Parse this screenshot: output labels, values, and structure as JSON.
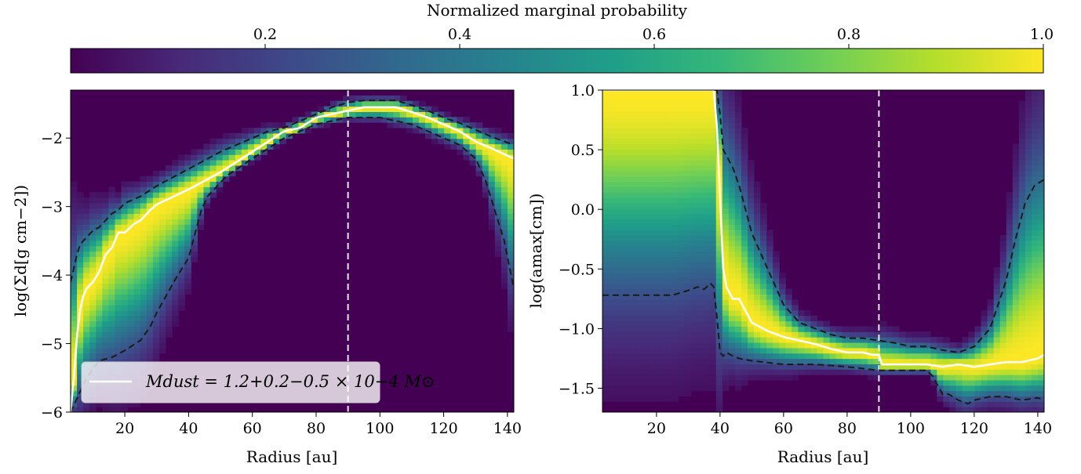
{
  "colorbar": {
    "title": "Normalized marginal probability",
    "ticks": [
      0.2,
      0.4,
      0.6,
      0.8,
      1.0
    ],
    "tick_labels": [
      "0.2",
      "0.4",
      "0.6",
      "0.8",
      "1.0"
    ],
    "range": [
      0.0,
      1.0
    ],
    "colormap": [
      "#440154",
      "#482878",
      "#3e4989",
      "#31688e",
      "#26828e",
      "#1f9e89",
      "#35b779",
      "#6ece58",
      "#b5de2b",
      "#fde725"
    ]
  },
  "chart_data": [
    {
      "type": "heatmap",
      "ylabel": "log(Σd[g cm−2])",
      "xlabel": "Radius [au]",
      "xlim": [
        3,
        142
      ],
      "ylim": [
        -6,
        -1.3
      ],
      "xticks": [
        20,
        40,
        60,
        80,
        100,
        120,
        140
      ],
      "xtick_labels": [
        "20",
        "40",
        "60",
        "80",
        "100",
        "120",
        "140"
      ],
      "yticks": [
        -6,
        -5,
        -4,
        -3,
        -2
      ],
      "ytick_labels": [
        "−6",
        "−5",
        "−4",
        "−3",
        "−2"
      ],
      "vline_x": 90,
      "legend": {
        "label": "Mdust = 1.2+0.2−0.5 × 10−4 M⊙",
        "location": "lower-left"
      },
      "series": [
        {
          "role": "median",
          "color": "#ffffff",
          "style": "solid",
          "x": [
            3,
            4,
            5,
            6,
            7,
            8,
            10,
            12,
            14,
            16,
            18,
            20,
            23,
            25,
            28,
            30,
            40,
            50,
            60,
            65,
            70,
            75,
            80,
            85,
            90,
            95,
            100,
            105,
            110,
            115,
            120,
            125,
            130,
            135,
            142
          ],
          "y": [
            -6.0,
            -5.5,
            -4.9,
            -4.5,
            -4.3,
            -4.2,
            -4.1,
            -3.95,
            -3.7,
            -3.6,
            -3.38,
            -3.38,
            -3.25,
            -3.2,
            -3.05,
            -2.97,
            -2.75,
            -2.5,
            -2.2,
            -2.05,
            -1.9,
            -1.85,
            -1.7,
            -1.65,
            -1.6,
            -1.55,
            -1.55,
            -1.55,
            -1.62,
            -1.7,
            -1.8,
            -1.9,
            -2.05,
            -2.15,
            -2.3
          ]
        },
        {
          "role": "upper-bound",
          "color": "#1a1a1a",
          "style": "dashed",
          "x": [
            3,
            4,
            5,
            6,
            8,
            10,
            12,
            14,
            16,
            18,
            20,
            25,
            30,
            40,
            50,
            55,
            60,
            65,
            70,
            75,
            80,
            85,
            90,
            95,
            100,
            105,
            110,
            115,
            120,
            125,
            130,
            135,
            142
          ],
          "y": [
            -4.1,
            -3.9,
            -3.7,
            -3.55,
            -3.45,
            -3.35,
            -3.3,
            -3.2,
            -3.1,
            -3.05,
            -2.95,
            -2.85,
            -2.7,
            -2.45,
            -2.2,
            -2.1,
            -2.0,
            -1.9,
            -1.85,
            -1.75,
            -1.65,
            -1.55,
            -1.48,
            -1.45,
            -1.45,
            -1.45,
            -1.52,
            -1.6,
            -1.7,
            -1.78,
            -1.88,
            -1.98,
            -2.1
          ]
        },
        {
          "role": "lower-bound",
          "color": "#1a1a1a",
          "style": "dashed",
          "x": [
            3,
            8,
            12,
            16,
            20,
            25,
            28,
            30,
            33,
            36,
            40,
            42,
            44,
            46,
            48,
            52,
            60,
            70,
            75,
            80,
            85,
            90,
            95,
            100,
            105,
            110,
            115,
            120,
            125,
            130,
            133,
            136,
            139,
            142
          ],
          "y": [
            -6.0,
            -5.5,
            -5.25,
            -5.2,
            -5.1,
            -4.95,
            -4.75,
            -4.55,
            -4.3,
            -4.05,
            -3.75,
            -3.4,
            -3.05,
            -2.85,
            -2.75,
            -2.55,
            -2.3,
            -2.0,
            -1.9,
            -1.8,
            -1.75,
            -1.7,
            -1.7,
            -1.7,
            -1.75,
            -1.8,
            -1.9,
            -2.0,
            -2.1,
            -2.3,
            -2.6,
            -3.05,
            -3.5,
            -4.2
          ]
        }
      ]
    },
    {
      "type": "heatmap",
      "ylabel": "log(amax[cm])",
      "xlabel": "Radius [au]",
      "xlim": [
        3,
        142
      ],
      "ylim": [
        -1.7,
        1.0
      ],
      "xticks": [
        20,
        40,
        60,
        80,
        100,
        120,
        140
      ],
      "xtick_labels": [
        "20",
        "40",
        "60",
        "80",
        "100",
        "120",
        "140"
      ],
      "yticks": [
        -1.5,
        -1.0,
        -0.5,
        0.0,
        0.5,
        1.0
      ],
      "ytick_labels": [
        "−1.5",
        "−1.0",
        "−0.5",
        "0.0",
        "0.5",
        "1.0"
      ],
      "vline_x": 90,
      "series": [
        {
          "role": "median",
          "color": "#ffffff",
          "style": "solid",
          "x": [
            3,
            38,
            39,
            40,
            41,
            42,
            44,
            46,
            48,
            50,
            55,
            60,
            65,
            70,
            75,
            80,
            85,
            88,
            90,
            91,
            95,
            100,
            105,
            110,
            115,
            120,
            125,
            130,
            135,
            140,
            142
          ],
          "y": [
            1.0,
            1.0,
            0.7,
            0.1,
            -0.5,
            -0.65,
            -0.75,
            -0.75,
            -0.85,
            -0.95,
            -1.02,
            -1.07,
            -1.1,
            -1.13,
            -1.17,
            -1.2,
            -1.2,
            -1.22,
            -1.22,
            -1.3,
            -1.3,
            -1.3,
            -1.3,
            -1.32,
            -1.3,
            -1.32,
            -1.3,
            -1.28,
            -1.28,
            -1.25,
            -1.22
          ]
        },
        {
          "role": "upper-bound",
          "color": "#1a1a1a",
          "style": "dashed",
          "x": [
            3,
            39,
            40,
            41,
            42,
            44,
            46,
            48,
            50,
            55,
            60,
            65,
            70,
            75,
            80,
            85,
            90,
            95,
            100,
            105,
            110,
            115,
            120,
            125,
            130,
            133,
            136,
            139,
            142
          ],
          "y": [
            1.0,
            1.0,
            0.8,
            0.5,
            0.45,
            0.35,
            0.2,
            0.0,
            -0.2,
            -0.5,
            -0.8,
            -0.95,
            -1.0,
            -1.05,
            -1.08,
            -1.08,
            -1.1,
            -1.12,
            -1.15,
            -1.15,
            -1.18,
            -1.2,
            -1.15,
            -1.0,
            -0.6,
            -0.25,
            0.05,
            0.2,
            0.25
          ]
        },
        {
          "role": "lower-bound",
          "color": "#1a1a1a",
          "style": "dashed",
          "x": [
            3,
            25,
            30,
            33,
            35,
            37,
            38,
            39,
            40,
            41,
            42,
            44,
            46,
            50,
            60,
            70,
            80,
            90,
            95,
            100,
            105,
            107,
            110,
            112,
            115,
            118,
            120,
            125,
            130,
            135,
            140,
            142
          ],
          "y": [
            -0.72,
            -0.72,
            -0.68,
            -0.65,
            -0.67,
            -0.62,
            -0.65,
            -0.9,
            -1.2,
            -1.23,
            -1.2,
            -1.23,
            -1.25,
            -1.27,
            -1.3,
            -1.3,
            -1.32,
            -1.35,
            -1.35,
            -1.35,
            -1.35,
            -1.4,
            -1.55,
            -1.55,
            -1.6,
            -1.63,
            -1.6,
            -1.57,
            -1.57,
            -1.6,
            -1.58,
            -1.6
          ]
        }
      ]
    }
  ]
}
